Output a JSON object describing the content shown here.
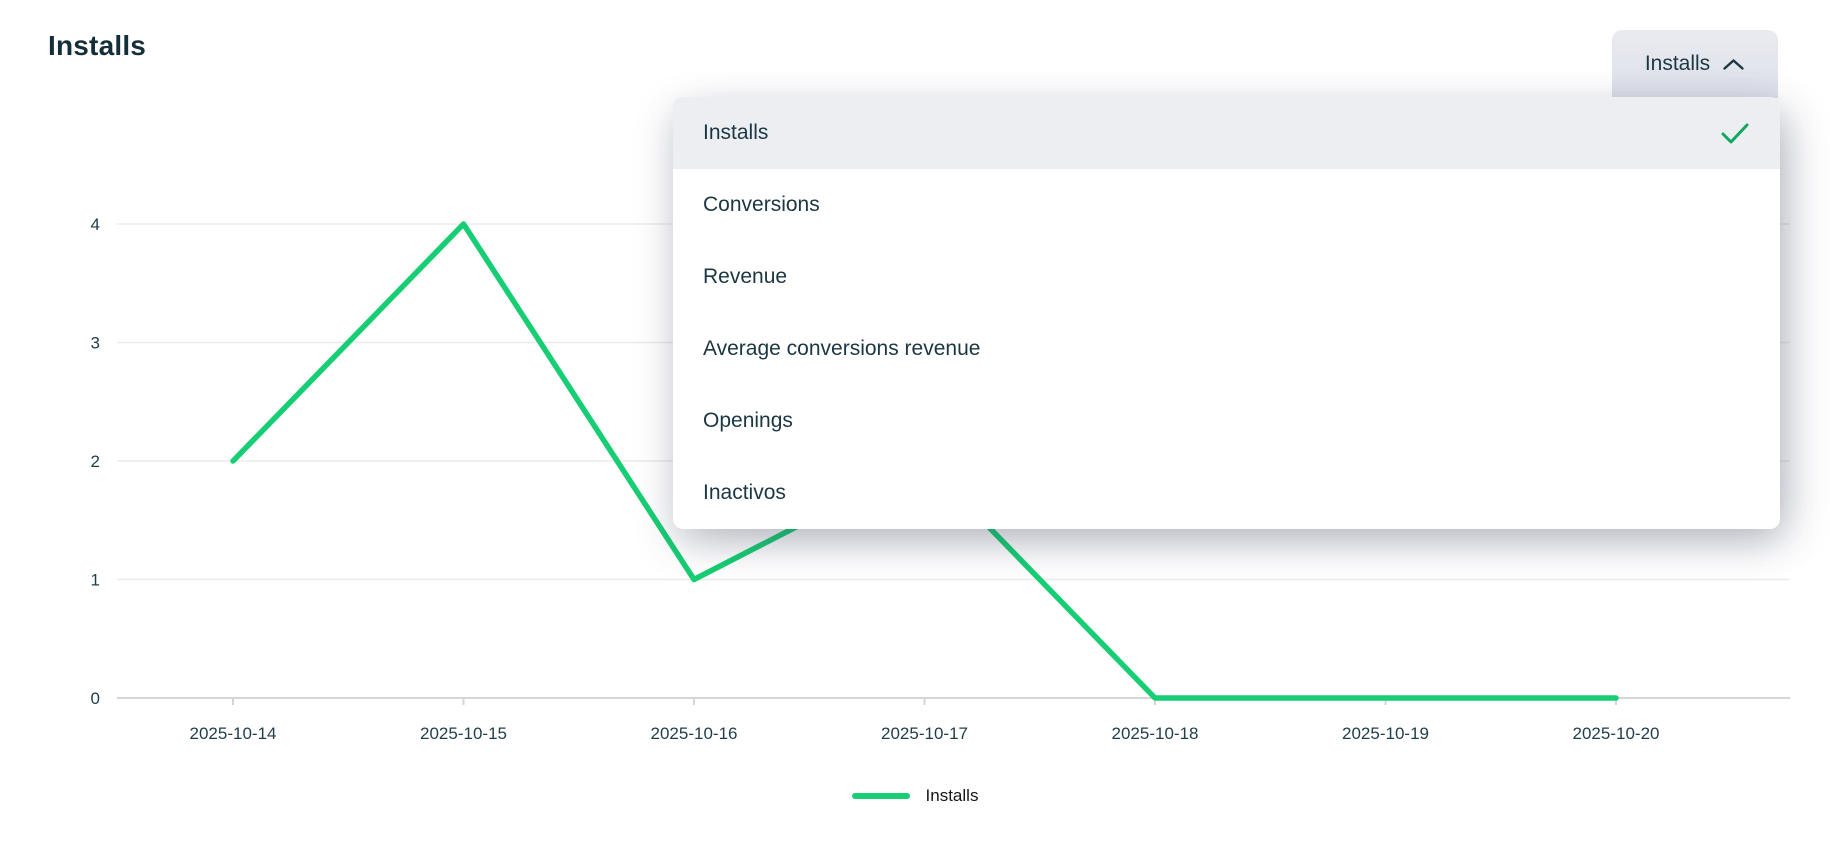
{
  "page": {
    "title": "Installs"
  },
  "dropdown": {
    "button_label": "Installs",
    "state_icon": "chevron-up-icon",
    "selected_mark_icon": "check-icon",
    "options": [
      {
        "label": "Installs",
        "selected": true
      },
      {
        "label": "Conversions",
        "selected": false
      },
      {
        "label": "Revenue",
        "selected": false
      },
      {
        "label": "Average conversions revenue",
        "selected": false
      },
      {
        "label": "Openings",
        "selected": false
      },
      {
        "label": "Inactivos",
        "selected": false
      }
    ]
  },
  "chart_data": {
    "type": "line",
    "title": "Installs",
    "x": [
      "2025-10-14",
      "2025-10-15",
      "2025-10-16",
      "2025-10-17",
      "2025-10-18",
      "2025-10-19",
      "2025-10-20"
    ],
    "series": [
      {
        "name": "Installs",
        "color": "#17CE74",
        "values": [
          2,
          4,
          1,
          2,
          0,
          0,
          0
        ]
      }
    ],
    "ylim": [
      0,
      4
    ],
    "yticks": [
      0,
      1,
      2,
      3,
      4
    ],
    "grid": true,
    "legend_position": "bottom"
  },
  "colors": {
    "accent_green": "#17CE74",
    "check_green": "#11A75F",
    "text_dark": "#1B3743",
    "axis_text": "#1F3D49",
    "grid_line": "#EBEBEB",
    "axis_line": "#D5D5D7",
    "menu_selected_bg": "#ECEEF2",
    "button_bg": "#E2E4EC"
  }
}
